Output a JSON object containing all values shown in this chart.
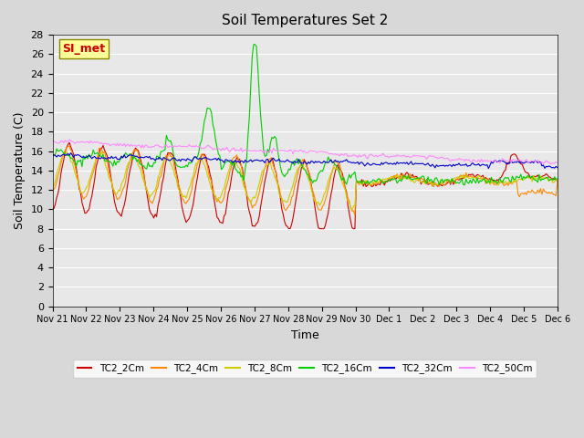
{
  "title": "Soil Temperatures Set 2",
  "xlabel": "Time",
  "ylabel": "Soil Temperature (C)",
  "ylim": [
    0,
    28
  ],
  "yticks": [
    0,
    2,
    4,
    6,
    8,
    10,
    12,
    14,
    16,
    18,
    20,
    22,
    24,
    26,
    28
  ],
  "series_labels": [
    "TC2_2Cm",
    "TC2_4Cm",
    "TC2_8Cm",
    "TC2_16Cm",
    "TC2_32Cm",
    "TC2_50Cm"
  ],
  "series_colors": [
    "#cc0000",
    "#ff8800",
    "#cccc00",
    "#00cc00",
    "#0000cc",
    "#ff88ff"
  ],
  "annotation_text": "SI_met",
  "annotation_color": "#cc0000",
  "annotation_bg": "#ffff99",
  "plot_bg": "#e8e8e8",
  "fig_bg": "#d8d8d8",
  "n_points": 360,
  "x_tick_positions": [
    0,
    1,
    2,
    3,
    4,
    5,
    6,
    7,
    8,
    9,
    10,
    11,
    12,
    13,
    14,
    15
  ],
  "x_tick_labels": [
    "Nov 21",
    "Nov 22",
    "Nov 23",
    "Nov 24",
    "Nov 25",
    "Nov 26",
    "Nov 27",
    "Nov 28",
    "Nov 29",
    "Nov 30",
    "Dec 1",
    "Dec 2",
    "Dec 3",
    "Dec 4",
    "Dec 5",
    "Dec 6"
  ]
}
